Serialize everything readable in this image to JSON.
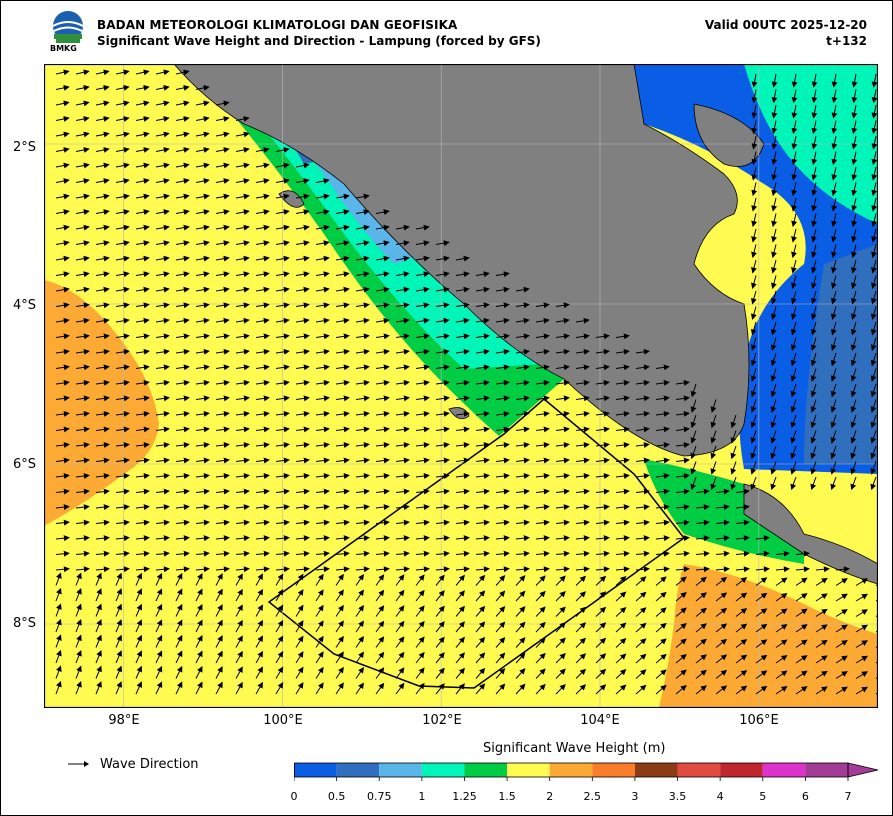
{
  "header": {
    "agency": "BADAN METEOROLOGI KLIMATOLOGI DAN GEOFISIKA",
    "product": "Significant Wave Height and Direction - Lampung (forced by GFS)",
    "valid": "Valid 00UTC 2025-12-20",
    "step": "t+132",
    "logo_text": "BMKG"
  },
  "axes": {
    "lat_labels": [
      "2°S",
      "4°S",
      "6°S",
      "8°S"
    ],
    "lat_values": [
      -2,
      -4,
      -6,
      -8
    ],
    "lon_labels": [
      "98°E",
      "100°E",
      "102°E",
      "104°E",
      "106°E"
    ],
    "lon_values": [
      98,
      100,
      102,
      104,
      106
    ],
    "lon_range": [
      97,
      107.5
    ],
    "lat_range": [
      -9.05,
      -1.0
    ]
  },
  "legend": {
    "direction_label": "Wave Direction",
    "colorbar_title": "Significant Wave Height (m)",
    "ticks": [
      "0",
      "0.5",
      "0.75",
      "1",
      "1.25",
      "1.5",
      "2",
      "2.5",
      "3",
      "3.5",
      "4",
      "5",
      "6",
      "7"
    ],
    "colors": [
      "#0a5ee6",
      "#2f6fbd",
      "#5ab6e8",
      "#00f5b8",
      "#00cc44",
      "#fffb50",
      "#fcaa33",
      "#fa7d2a",
      "#8c3c14",
      "#e14a40",
      "#c0262e",
      "#dd33cc",
      "#a23c96"
    ]
  },
  "map": {
    "land_color": "#808080",
    "ocean_default": "#fffb50"
  }
}
